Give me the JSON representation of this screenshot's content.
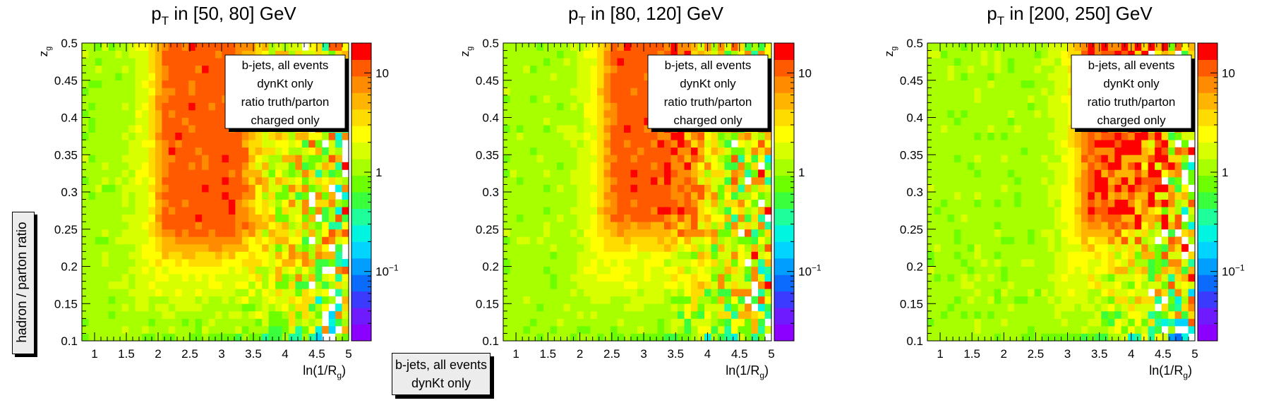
{
  "figure": {
    "ylabel": "hadron / parton ratio",
    "footer_box": [
      "b-jets, all events",
      "dynKt only"
    ]
  },
  "panel_titles": [
    "p_T in [50, 80] GeV",
    "p_T in [80, 120] GeV",
    "p_T in [200, 250] GeV"
  ],
  "colors": {
    "palette": [
      "#8b00ff",
      "#6f1bff",
      "#3b3bff",
      "#0b6bff",
      "#009eff",
      "#00d4ff",
      "#00f5e0",
      "#1eff9b",
      "#39ff3c",
      "#6dff00",
      "#a8ff00",
      "#d8ff00",
      "#ffff00",
      "#ffdc00",
      "#ffb400",
      "#ff8c00",
      "#ff5a00",
      "#ff0000"
    ],
    "ink": "#000000",
    "legend_bg": "#ffffff",
    "box_bg": "#ececec"
  },
  "chart_data": [
    {
      "type": "heatmap",
      "title": "p_T in [50, 80] GeV",
      "xlabel": "ln(1/R_g)",
      "ylabel": "z_g",
      "xlim": [
        0.8,
        5.0
      ],
      "ylim": [
        0.1,
        0.5
      ],
      "xticks": [
        "1",
        "1.5",
        "2",
        "2.5",
        "3",
        "3.5",
        "4",
        "4.5",
        "5"
      ],
      "yticks": [
        "0.1",
        "0.15",
        "0.2",
        "0.25",
        "0.3",
        "0.35",
        "0.4",
        "0.45",
        "0.5"
      ],
      "grid": false,
      "color_scale": "log",
      "zlim": [
        0.02,
        20
      ],
      "colorbar_ticks": [
        "10",
        "1",
        "10^{-1}"
      ],
      "x_bins": 40,
      "y_bins": 40,
      "hot_region": {
        "ln_1_over_Rg": [
          1.8,
          3.2
        ],
        "z_g": [
          0.22,
          0.5
        ]
      },
      "annotation": [
        "b-jets, all events",
        "dynKt only",
        "ratio truth/parton",
        "charged only"
      ]
    },
    {
      "type": "heatmap",
      "title": "p_T in [80, 120] GeV",
      "xlabel": "ln(1/R_g)",
      "ylabel": "z_g",
      "xlim": [
        0.8,
        5.0
      ],
      "ylim": [
        0.1,
        0.5
      ],
      "xticks": [
        "1",
        "1.5",
        "2",
        "2.5",
        "3",
        "3.5",
        "4",
        "4.5",
        "5"
      ],
      "yticks": [
        "0.1",
        "0.15",
        "0.2",
        "0.25",
        "0.3",
        "0.35",
        "0.4",
        "0.45",
        "0.5"
      ],
      "grid": false,
      "color_scale": "log",
      "zlim": [
        0.02,
        20
      ],
      "colorbar_ticks": [
        "10",
        "1",
        "10^{-1}"
      ],
      "x_bins": 40,
      "y_bins": 40,
      "hot_region": {
        "ln_1_over_Rg": [
          2.2,
          3.6
        ],
        "z_g": [
          0.24,
          0.5
        ]
      },
      "annotation": [
        "b-jets, all events",
        "dynKt only",
        "ratio truth/parton",
        "charged only"
      ]
    },
    {
      "type": "heatmap",
      "title": "p_T in [200, 250] GeV",
      "xlabel": "ln(1/R_g)",
      "ylabel": "z_g",
      "xlim": [
        0.8,
        5.0
      ],
      "ylim": [
        0.1,
        0.5
      ],
      "xticks": [
        "1",
        "1.5",
        "2",
        "2.5",
        "3",
        "3.5",
        "4",
        "4.5",
        "5"
      ],
      "yticks": [
        "0.1",
        "0.15",
        "0.2",
        "0.25",
        "0.3",
        "0.35",
        "0.4",
        "0.45",
        "0.5"
      ],
      "grid": false,
      "color_scale": "log",
      "zlim": [
        0.02,
        20
      ],
      "colorbar_ticks": [
        "10",
        "1",
        "10^{-1}"
      ],
      "x_bins": 40,
      "y_bins": 40,
      "hot_region": {
        "ln_1_over_Rg": [
          3.0,
          4.2
        ],
        "z_g": [
          0.24,
          0.45
        ]
      },
      "annotation": [
        "b-jets, all events",
        "dynKt only",
        "ratio truth/parton",
        "charged only"
      ]
    }
  ]
}
